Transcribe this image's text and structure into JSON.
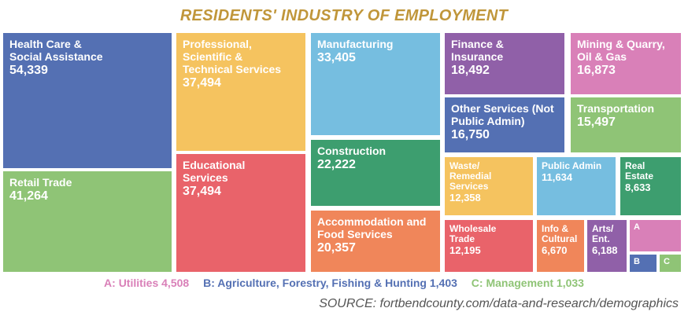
{
  "chart_data": {
    "type": "treemap",
    "title": "RESIDENTS' INDUSTRY OF EMPLOYMENT",
    "tiles": [
      {
        "name": "Health Care & Social Assistance",
        "label": "Health Care &\nSocial Assistance",
        "value": 54339,
        "value_text": "54,339",
        "color": "#5470b3"
      },
      {
        "name": "Retail Trade",
        "label": "Retail Trade",
        "value": 41264,
        "value_text": "41,264",
        "color": "#8fc476"
      },
      {
        "name": "Professional, Scientific & Technical Services",
        "label": "Professional,\nScientific &\nTechnical Services",
        "value": 37494,
        "value_text": "37,494",
        "color": "#f5c35f"
      },
      {
        "name": "Educational Services",
        "label": "Educational\nServices",
        "value": 37494,
        "value_text": "37,494",
        "color": "#e9636a"
      },
      {
        "name": "Manufacturing",
        "label": "Manufacturing",
        "value": 33405,
        "value_text": "33,405",
        "color": "#76bee0"
      },
      {
        "name": "Construction",
        "label": "Construction",
        "value": 22222,
        "value_text": "22,222",
        "color": "#3d9e6f"
      },
      {
        "name": "Accommodation and Food Services",
        "label": "Accommodation and\nFood Services",
        "value": 20357,
        "value_text": "20,357",
        "color": "#f0865a"
      },
      {
        "name": "Finance & Insurance",
        "label": "Finance &\nInsurance",
        "value": 18492,
        "value_text": "18,492",
        "color": "#9060a8"
      },
      {
        "name": "Mining & Quarry, Oil & Gas",
        "label": "Mining & Quarry,\nOil & Gas",
        "value": 16873,
        "value_text": "16,873",
        "color": "#d980b8"
      },
      {
        "name": "Other Services (Not Public Admin)",
        "label": "Other Services (Not\nPublic Admin)",
        "value": 16750,
        "value_text": "16,750",
        "color": "#5470b3"
      },
      {
        "name": "Transportation",
        "label": "Transportation",
        "value": 15497,
        "value_text": "15,497",
        "color": "#8fc476"
      },
      {
        "name": "Waste/Remedial Services",
        "label": "Waste/\nRemedial\nServices",
        "value": 12358,
        "value_text": "12,358",
        "color": "#f5c35f"
      },
      {
        "name": "Public Admin",
        "label": "Public Admin",
        "value": 11634,
        "value_text": "11,634",
        "color": "#76bee0"
      },
      {
        "name": "Real Estate",
        "label": "Real\nEstate",
        "value": 8633,
        "value_text": "8,633",
        "color": "#3d9e6f"
      },
      {
        "name": "Wholesale Trade",
        "label": "Wholesale\nTrade",
        "value": 12195,
        "value_text": "12,195",
        "color": "#e9636a"
      },
      {
        "name": "Info & Cultural",
        "label": "Info &\nCultural",
        "value": 6670,
        "value_text": "6,670",
        "color": "#f0865a"
      },
      {
        "name": "Arts/Ent.",
        "label": "Arts/\nEnt.",
        "value": 6188,
        "value_text": "6,188",
        "color": "#9060a8"
      },
      {
        "name": "Utilities",
        "label": "A",
        "value": 4508,
        "value_text": "",
        "color": "#d980b8"
      },
      {
        "name": "Agriculture, Forestry, Fishing & Hunting",
        "label": "B",
        "value": 1403,
        "value_text": "",
        "color": "#5470b3"
      },
      {
        "name": "Management",
        "label": "C",
        "value": 1033,
        "value_text": "",
        "color": "#8fc476"
      }
    ],
    "footnotes": [
      {
        "text": "A: Utilities 4,508",
        "color": "#d980b8"
      },
      {
        "text": "B: Agriculture, Forestry, Fishing & Hunting 1,403",
        "color": "#5470b3"
      },
      {
        "text": "C: Management 1,033",
        "color": "#8fc476"
      }
    ],
    "source": "SOURCE: fortbendcounty.com/data-and-research/demographics"
  }
}
